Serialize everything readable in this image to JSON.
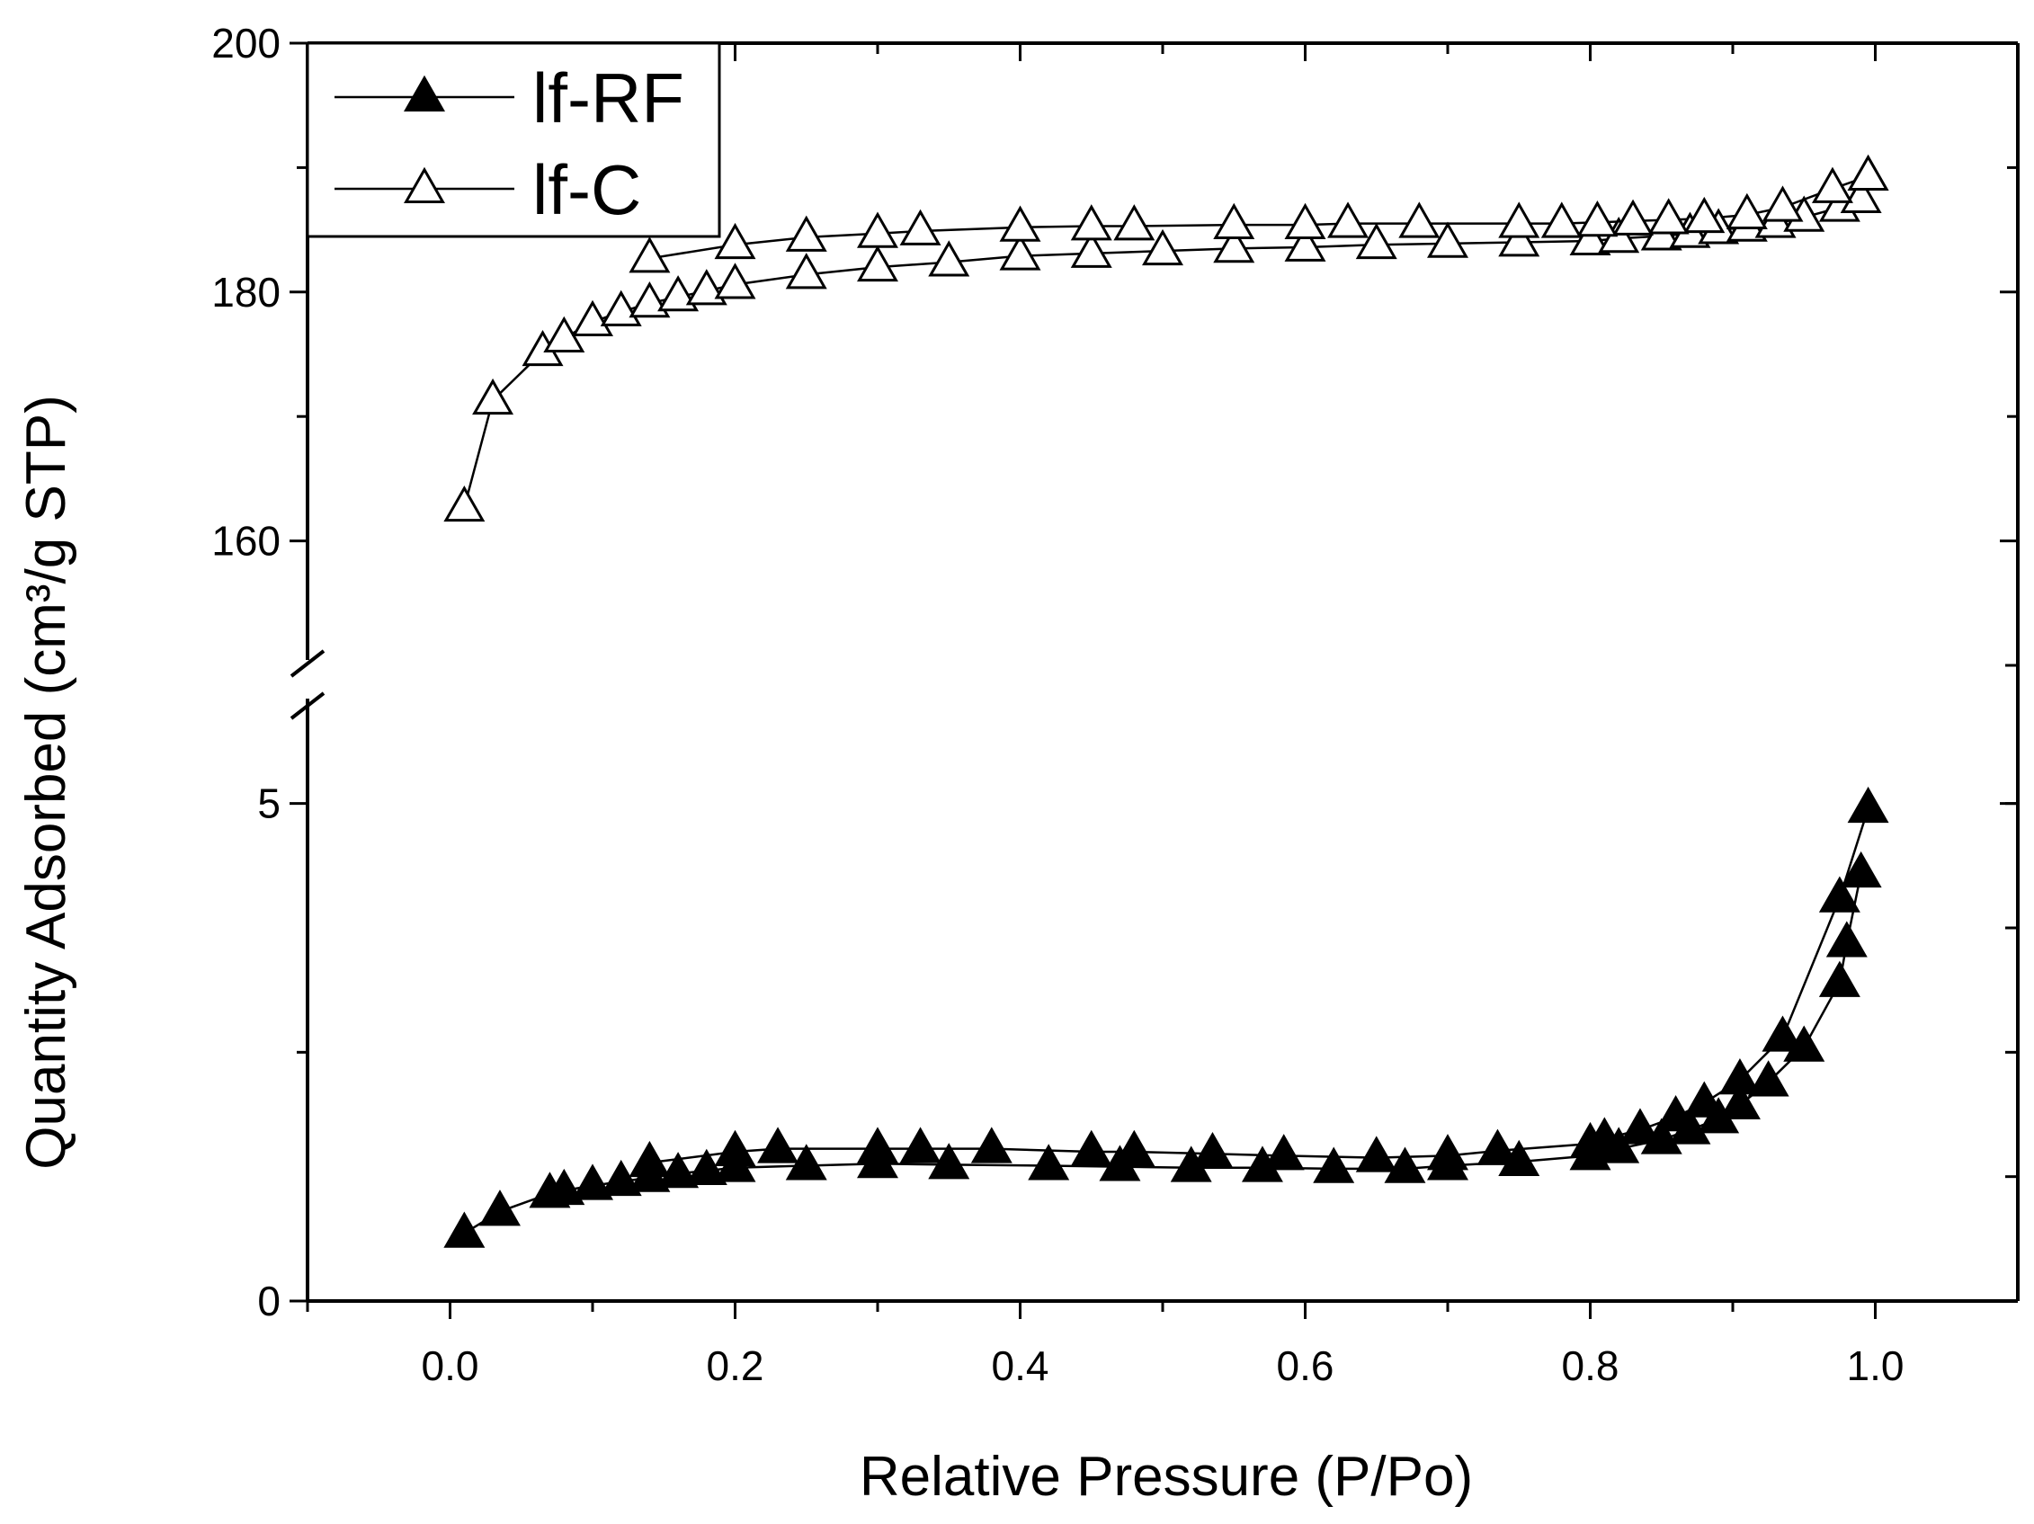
{
  "chart_data": {
    "type": "scatter",
    "title": "",
    "xlabel": "Relative Pressure (P/Po)",
    "ylabel": "Quantity Adsorbed (cm³/g STP)",
    "xlim": [
      -0.1,
      1.1
    ],
    "xticks": [
      "0.0",
      "0.2",
      "0.4",
      "0.6",
      "0.8",
      "1.0"
    ],
    "xtick_values": [
      0.0,
      0.2,
      0.4,
      0.6,
      0.8,
      1.0
    ],
    "y_axis_broken": true,
    "y_segments": [
      {
        "range": [
          0,
          6
        ],
        "tick_labels": [
          "0",
          "5"
        ],
        "tick_values": [
          0,
          5
        ]
      },
      {
        "range": [
          150,
          200
        ],
        "tick_labels": [
          "160",
          "180",
          "200"
        ],
        "tick_values": [
          160,
          180,
          200
        ]
      }
    ],
    "grid": false,
    "legend_position": "top-left",
    "series": [
      {
        "name": "lf-RF",
        "marker": "filled-triangle",
        "adsorption": {
          "x": [
            0.01,
            0.035,
            0.07,
            0.08,
            0.1,
            0.12,
            0.14,
            0.16,
            0.18,
            0.2,
            0.25,
            0.3,
            0.35,
            0.42,
            0.47,
            0.52,
            0.57,
            0.62,
            0.67,
            0.7,
            0.75,
            0.8,
            0.82,
            0.85,
            0.87,
            0.89,
            0.905,
            0.925,
            0.95,
            0.975,
            0.98,
            0.99
          ],
          "y": [
            0.68,
            0.9,
            1.08,
            1.11,
            1.16,
            1.2,
            1.24,
            1.28,
            1.31,
            1.34,
            1.36,
            1.38,
            1.37,
            1.36,
            1.35,
            1.34,
            1.34,
            1.33,
            1.33,
            1.36,
            1.4,
            1.46,
            1.53,
            1.62,
            1.72,
            1.83,
            1.97,
            2.2,
            2.55,
            3.2,
            3.6,
            4.3
          ]
        },
        "desorption": {
          "x": [
            0.995,
            0.975,
            0.935,
            0.905,
            0.88,
            0.86,
            0.835,
            0.81,
            0.8,
            0.735,
            0.7,
            0.65,
            0.585,
            0.535,
            0.48,
            0.45,
            0.38,
            0.33,
            0.3,
            0.23,
            0.2,
            0.14
          ],
          "y": [
            4.95,
            4.05,
            2.65,
            2.22,
            1.99,
            1.85,
            1.72,
            1.63,
            1.58,
            1.51,
            1.46,
            1.44,
            1.46,
            1.48,
            1.5,
            1.5,
            1.53,
            1.53,
            1.53,
            1.53,
            1.5,
            1.39
          ]
        }
      },
      {
        "name": "lf-C",
        "marker": "open-triangle",
        "adsorption": {
          "x": [
            0.01,
            0.03,
            0.065,
            0.08,
            0.1,
            0.12,
            0.14,
            0.16,
            0.18,
            0.2,
            0.25,
            0.3,
            0.35,
            0.4,
            0.45,
            0.5,
            0.55,
            0.6,
            0.65,
            0.7,
            0.75,
            0.8,
            0.82,
            0.85,
            0.87,
            0.89,
            0.91,
            0.93,
            0.95,
            0.975,
            0.99,
            0.995
          ],
          "y": [
            162.7,
            171.3,
            175.2,
            176.3,
            177.6,
            178.4,
            179.1,
            179.6,
            180.1,
            180.6,
            181.4,
            182.0,
            182.4,
            182.9,
            183.1,
            183.3,
            183.5,
            183.6,
            183.8,
            183.9,
            184.0,
            184.1,
            184.3,
            184.5,
            184.7,
            185.0,
            185.2,
            185.5,
            186.0,
            186.8,
            187.5,
            189.3
          ]
        },
        "desorption": {
          "x": [
            0.995,
            0.97,
            0.935,
            0.91,
            0.88,
            0.855,
            0.83,
            0.805,
            0.78,
            0.75,
            0.68,
            0.63,
            0.6,
            0.55,
            0.48,
            0.45,
            0.4,
            0.33,
            0.3,
            0.25,
            0.2,
            0.14
          ],
          "y": [
            189.3,
            188.3,
            186.8,
            186.2,
            185.9,
            185.8,
            185.7,
            185.6,
            185.5,
            185.5,
            185.5,
            185.5,
            185.4,
            185.4,
            185.3,
            185.3,
            185.2,
            184.9,
            184.7,
            184.4,
            183.8,
            182.7
          ]
        }
      }
    ]
  }
}
